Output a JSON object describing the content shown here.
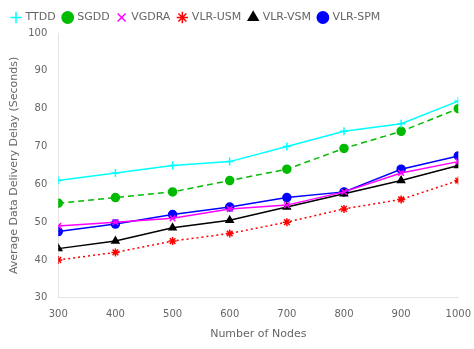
{
  "chart_data": {
    "type": "line",
    "x": [
      300,
      400,
      500,
      600,
      700,
      800,
      900,
      1000
    ],
    "series": [
      {
        "name": "TTDD",
        "color": "#00FFFF",
        "marker": "plus",
        "line_style": "solid",
        "values": [
          61,
          63,
          65,
          66,
          70,
          74,
          76,
          82
        ]
      },
      {
        "name": "SGDD",
        "color": "#00BB00",
        "marker": "circle",
        "line_style": "dashed",
        "values": [
          55,
          56.5,
          58,
          61,
          64,
          69.5,
          74,
          80
        ]
      },
      {
        "name": "VGDRA",
        "color": "#FF00FF",
        "marker": "x",
        "line_style": "solid",
        "values": [
          49,
          50,
          51,
          53.5,
          54.5,
          58,
          63,
          66
        ]
      },
      {
        "name": "VLR-USM",
        "color": "#FF0000",
        "marker": "star",
        "line_style": "dotted",
        "values": [
          40,
          42,
          45,
          47,
          50,
          53.5,
          56,
          61
        ]
      },
      {
        "name": "VLR-VSM",
        "color": "#000000",
        "marker": "triangle",
        "line_style": "solid",
        "values": [
          43,
          45,
          48.5,
          50.5,
          54,
          57.5,
          61,
          65
        ]
      },
      {
        "name": "VLR-SPM",
        "color": "#0000FF",
        "marker": "circle",
        "line_style": "solid",
        "values": [
          47.5,
          49.5,
          52,
          54,
          56.5,
          58,
          64,
          67.5
        ]
      }
    ],
    "xlabel": "Number of Nodes",
    "ylabel": "Average Data Delivery Delay (Seconds)",
    "xlim": [
      300,
      1000
    ],
    "ylim": [
      30,
      100
    ],
    "xticks": [
      300,
      400,
      500,
      600,
      700,
      800,
      900,
      1000
    ],
    "yticks": [
      30,
      40,
      50,
      60,
      70,
      80,
      90,
      100
    ],
    "grid": false,
    "legend": "upper left"
  }
}
